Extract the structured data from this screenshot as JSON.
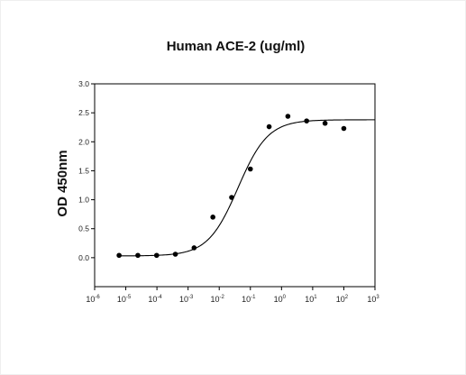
{
  "chart_data": {
    "type": "scatter",
    "title": "Human ACE-2 (ug/ml)",
    "xlabel": "",
    "ylabel": "OD 450nm",
    "x_scale": "log",
    "xlim": [
      1e-06,
      1000
    ],
    "ylim": [
      -0.5,
      3.0
    ],
    "x_ticks": [
      {
        "base": "10",
        "exp": "-6"
      },
      {
        "base": "10",
        "exp": "-5"
      },
      {
        "base": "10",
        "exp": "-4"
      },
      {
        "base": "10",
        "exp": "-3"
      },
      {
        "base": "10",
        "exp": "-2"
      },
      {
        "base": "10",
        "exp": "-1"
      },
      {
        "base": "10",
        "exp": "0"
      },
      {
        "base": "10",
        "exp": "1"
      },
      {
        "base": "10",
        "exp": "2"
      },
      {
        "base": "10",
        "exp": "3"
      }
    ],
    "y_ticks": [
      "0.0",
      "0.5",
      "1.0",
      "1.5",
      "2.0",
      "2.5",
      "3.0"
    ],
    "grid": false,
    "points": [
      {
        "x": 6.1e-06,
        "y": 0.04
      },
      {
        "x": 2.44e-05,
        "y": 0.04
      },
      {
        "x": 9.77e-05,
        "y": 0.04
      },
      {
        "x": 0.000391,
        "y": 0.06
      },
      {
        "x": 0.00156,
        "y": 0.17
      },
      {
        "x": 0.00625,
        "y": 0.7
      },
      {
        "x": 0.025,
        "y": 1.04
      },
      {
        "x": 0.1,
        "y": 1.53
      },
      {
        "x": 0.4,
        "y": 2.26
      },
      {
        "x": 1.6,
        "y": 2.44
      },
      {
        "x": 6.4,
        "y": 2.36
      },
      {
        "x": 25,
        "y": 2.32
      },
      {
        "x": 100,
        "y": 2.23
      }
    ],
    "fit": {
      "type": "4PL",
      "bottom": 0.03,
      "top": 2.38,
      "ec50": 0.04,
      "hill": 0.9
    },
    "colors": {
      "points": "#000000",
      "curve": "#000000",
      "axes": "#000000"
    }
  }
}
